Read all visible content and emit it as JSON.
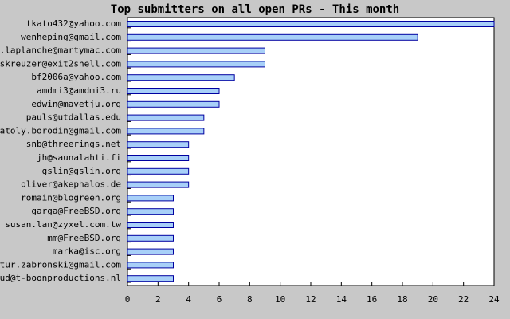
{
  "chart_data": {
    "type": "hbar",
    "title": "Top submitters on all open PRs - This month",
    "categories": [
      "tkato432@yahoo.com",
      "wenheping@gmail.com",
      "el.laplanche@martymac.com",
      "skreuzer@exit2shell.com",
      "bf2006a@yahoo.com",
      "amdmi3@amdmi3.ru",
      "edwin@mavetju.org",
      "pauls@utdallas.edu",
      "anatoly.borodin@gmail.com",
      "snb@threerings.net",
      "jh@saunalahti.fi",
      "gslin@gslin.org",
      "oliver@akephalos.de",
      "romain@blogreen.org",
      "garga@FreeBSD.org",
      "susan.lan@zyxel.com.tw",
      "mm@FreeBSD.org",
      "marka@isc.org",
      "artur.zabronski@gmail.com",
      "ruud@t-boonproductions.nl"
    ],
    "values": [
      24,
      19,
      9,
      9,
      7,
      6,
      6,
      5,
      5,
      4,
      4,
      4,
      4,
      3,
      3,
      3,
      3,
      3,
      3,
      3
    ],
    "color": "#a8d0f8",
    "edge_color": "#0000a0",
    "xlim": [
      0,
      24
    ],
    "xticks": [
      0,
      2,
      4,
      6,
      8,
      10,
      12,
      14,
      16,
      18,
      20,
      22,
      24
    ]
  }
}
